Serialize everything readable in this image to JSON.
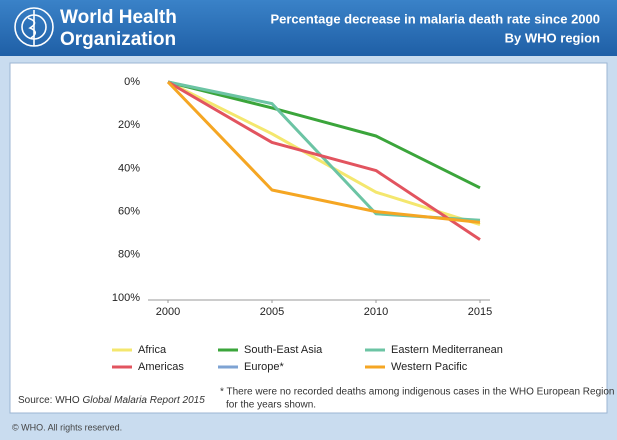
{
  "header": {
    "org_line1": "World Health",
    "org_line2": "Organization"
  },
  "chart_data": {
    "type": "line",
    "title": "Percentage decrease in malaria death rate since 2000",
    "subtitle": "By WHO region",
    "x": [
      2000,
      2005,
      2010,
      2015
    ],
    "xlim": [
      2000,
      2015
    ],
    "xticks": [
      2000,
      2005,
      2010,
      2015
    ],
    "ylim": [
      0,
      100
    ],
    "y_reversed": true,
    "yticks": [
      {
        "value": 0,
        "label": "0%"
      },
      {
        "value": 20,
        "label": "20%"
      },
      {
        "value": 40,
        "label": "40%"
      },
      {
        "value": 60,
        "label": "60%"
      },
      {
        "value": 80,
        "label": "80%"
      },
      {
        "value": 100,
        "label": "100%"
      }
    ],
    "grid": false,
    "legend": "bottom",
    "series": [
      {
        "name": "Africa",
        "color": "#f4e76e",
        "values": [
          0,
          24,
          51,
          66
        ]
      },
      {
        "name": "South-East Asia",
        "color": "#3ba53b",
        "values": [
          0,
          12,
          25,
          49
        ]
      },
      {
        "name": "Eastern Mediterranean",
        "color": "#6cc4a4",
        "values": [
          0,
          10,
          61,
          64
        ]
      },
      {
        "name": "Americas",
        "color": "#e2545f",
        "values": [
          0,
          28,
          41,
          73
        ]
      },
      {
        "name": "Europe*",
        "color": "#7ea3d3",
        "values": [
          null,
          null,
          null,
          null
        ]
      },
      {
        "name": "Western Pacific",
        "color": "#f5a623",
        "values": [
          0,
          50,
          60,
          65
        ]
      }
    ]
  },
  "source": [
    "Source: WHO ",
    "Global Malaria Report 2015"
  ],
  "footnote": [
    "* There were no recorded deaths among indigenous cases in the WHO European Region",
    "for the years shown."
  ],
  "copyright": "© WHO. All rights reserved."
}
